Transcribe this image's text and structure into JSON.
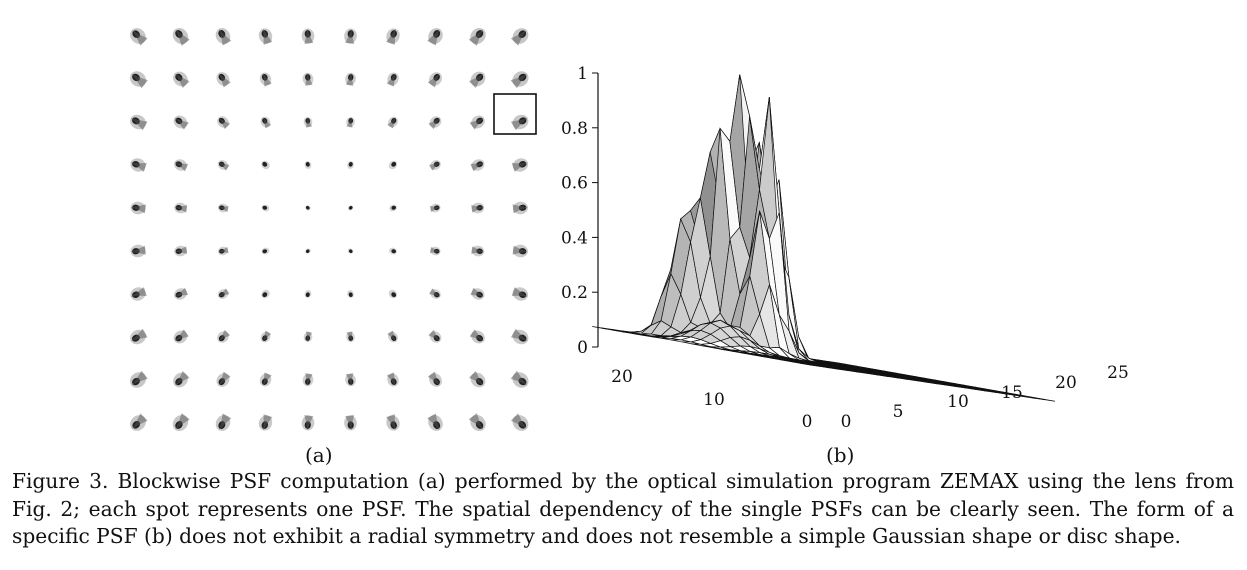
{
  "figure": {
    "label_a": "(a)",
    "label_b": "(b)",
    "psf_grid": {
      "rows": 10,
      "cols": 10,
      "highlight_row": 2,
      "highlight_col": 9
    },
    "z_ticks": [
      "0",
      "0.2",
      "0.4",
      "0.6",
      "0.8",
      "1"
    ],
    "x_ticks": [
      "0",
      "5",
      "10",
      "15",
      "20",
      "25"
    ],
    "y_ticks": [
      "0",
      "10",
      "20"
    ]
  },
  "caption": {
    "text": "Figure 3. Blockwise PSF computation (a) performed by the optical simulation program ZEMAX using the lens from Fig. 2; each spot represents one PSF. The spatial dependency of the single PSFs can be clearly seen.  The form of a specific PSF (b) does not exhibit a radial symmetry and does not resemble a simple Gaussian shape or disc shape."
  }
}
